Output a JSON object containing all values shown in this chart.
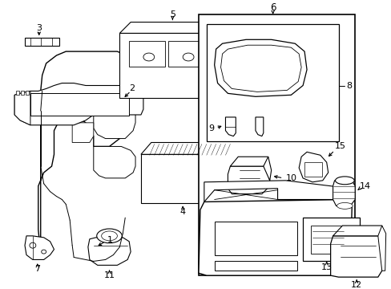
{
  "bg_color": "#ffffff",
  "lc": "#000000",
  "lw": 0.7,
  "fig_width": 4.89,
  "fig_height": 3.6,
  "dpi": 100,
  "xlim": [
    0,
    489
  ],
  "ylim": [
    0,
    360
  ]
}
